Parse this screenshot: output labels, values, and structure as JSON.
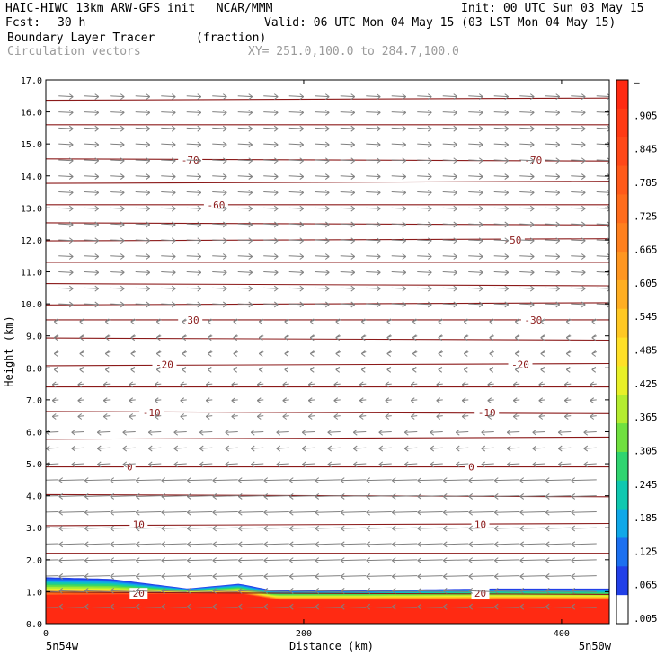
{
  "header": {
    "title_left": "HAIC-HIWC 13km ARW-GFS init   NCAR/MMM",
    "init": "Init: 00 UTC Sun 03 May 15",
    "fcst_label": "Fcst:",
    "fcst_value": "30 h",
    "valid": "Valid: 06 UTC Mon 04 May 15 (03 LST Mon 04 May 15)",
    "field": "Boundary Layer Tracer",
    "field_units": "(fraction)",
    "vectors": "Circulation vectors",
    "xy": "XY= 251.0,100.0 to 284.7,100.0"
  },
  "chart_data": {
    "type": "heatmap",
    "ylabel": "Height (km)",
    "xlabel": "Distance (km)",
    "x_left_label": "5n54w",
    "x_right_label": "5n50w",
    "xlim": [
      0,
      437
    ],
    "ylim": [
      0,
      17
    ],
    "xticks": [
      0,
      200,
      400
    ],
    "xtick_labels": [
      "0",
      "200",
      "400"
    ],
    "yticks": [
      0,
      1,
      2,
      3,
      4,
      5,
      6,
      7,
      8,
      9,
      10,
      11,
      12,
      13,
      14,
      15,
      16,
      17
    ],
    "ytick_labels": [
      "0.0",
      "1.0",
      "2.0",
      "3.0",
      "4.0",
      "5.0",
      "6.0",
      "7.0",
      "8.0",
      "9.0",
      "10.0",
      "11.0",
      "12.0",
      "13.0",
      "14.0",
      "15.0",
      "16.0",
      "17.0"
    ],
    "colorbar": {
      "labels": [
        "–",
        ".905",
        ".845",
        ".785",
        ".725",
        ".665",
        ".605",
        ".545",
        ".485",
        ".425",
        ".365",
        ".305",
        ".245",
        ".185",
        ".125",
        ".065",
        ".005"
      ],
      "colors": [
        "#ff2a12",
        "#ff3a14",
        "#ff4818",
        "#ff5a1a",
        "#ff6c1c",
        "#ff801e",
        "#ff9620",
        "#ffae22",
        "#ffc824",
        "#ffe028",
        "#e8f028",
        "#b4ec30",
        "#70e040",
        "#30d470",
        "#10c8b0",
        "#10a8e8",
        "#1c70f0",
        "#2240e8",
        "#ffffff"
      ]
    },
    "tracer_layer": {
      "top_km": [
        [
          0,
          1.45
        ],
        [
          50,
          1.4
        ],
        [
          110,
          1.1
        ],
        [
          150,
          1.25
        ],
        [
          175,
          1.05
        ],
        [
          250,
          1.05
        ],
        [
          350,
          1.1
        ],
        [
          437,
          1.1
        ]
      ],
      "core_top_km": [
        [
          0,
          0.9
        ],
        [
          150,
          0.95
        ],
        [
          180,
          0.75
        ],
        [
          437,
          0.75
        ]
      ]
    },
    "temperature_contours": [
      {
        "label": "-70",
        "x": [
          112,
          378
        ],
        "y_km": 14.5
      },
      {
        "label": "-60",
        "x": [
          132
        ],
        "y_km": 13.1
      },
      {
        "label": "-50",
        "x": [
          362
        ],
        "y_km": 12.0
      },
      {
        "label": "-30",
        "x": [
          112,
          378
        ],
        "y_km": 9.5
      },
      {
        "label": "-20",
        "x": [
          92,
          368
        ],
        "y_km": 8.1
      },
      {
        "label": "-10",
        "x": [
          82,
          342
        ],
        "y_km": 6.6
      },
      {
        "label": "0",
        "x": [
          65,
          330
        ],
        "y_km": 4.9
      },
      {
        "label": "10",
        "x": [
          72,
          337
        ],
        "y_km": 3.1
      },
      {
        "label": "20",
        "x": [
          72,
          337
        ],
        "y_km": 0.95
      }
    ],
    "isotherm_levels_km": [
      16.4,
      15.6,
      14.5,
      13.8,
      13.1,
      12.5,
      12.0,
      11.3,
      10.6,
      10.0,
      9.5,
      8.9,
      8.1,
      7.4,
      6.6,
      5.8,
      4.9,
      4.0,
      3.1,
      2.2,
      0.95
    ],
    "wind_vectors_note_levels_km": [
      16.5,
      16.0,
      15.5,
      15.0,
      14.5,
      14.0,
      13.5,
      13.0,
      12.5,
      12.0,
      11.5,
      11.0,
      10.5,
      10.0,
      9.5,
      9.0,
      8.5,
      8.0,
      7.5,
      7.0,
      6.5,
      6.0,
      5.5,
      5.0,
      4.5,
      4.0,
      3.5,
      3.0,
      2.5,
      2.0,
      1.5,
      1.0,
      0.5
    ]
  }
}
